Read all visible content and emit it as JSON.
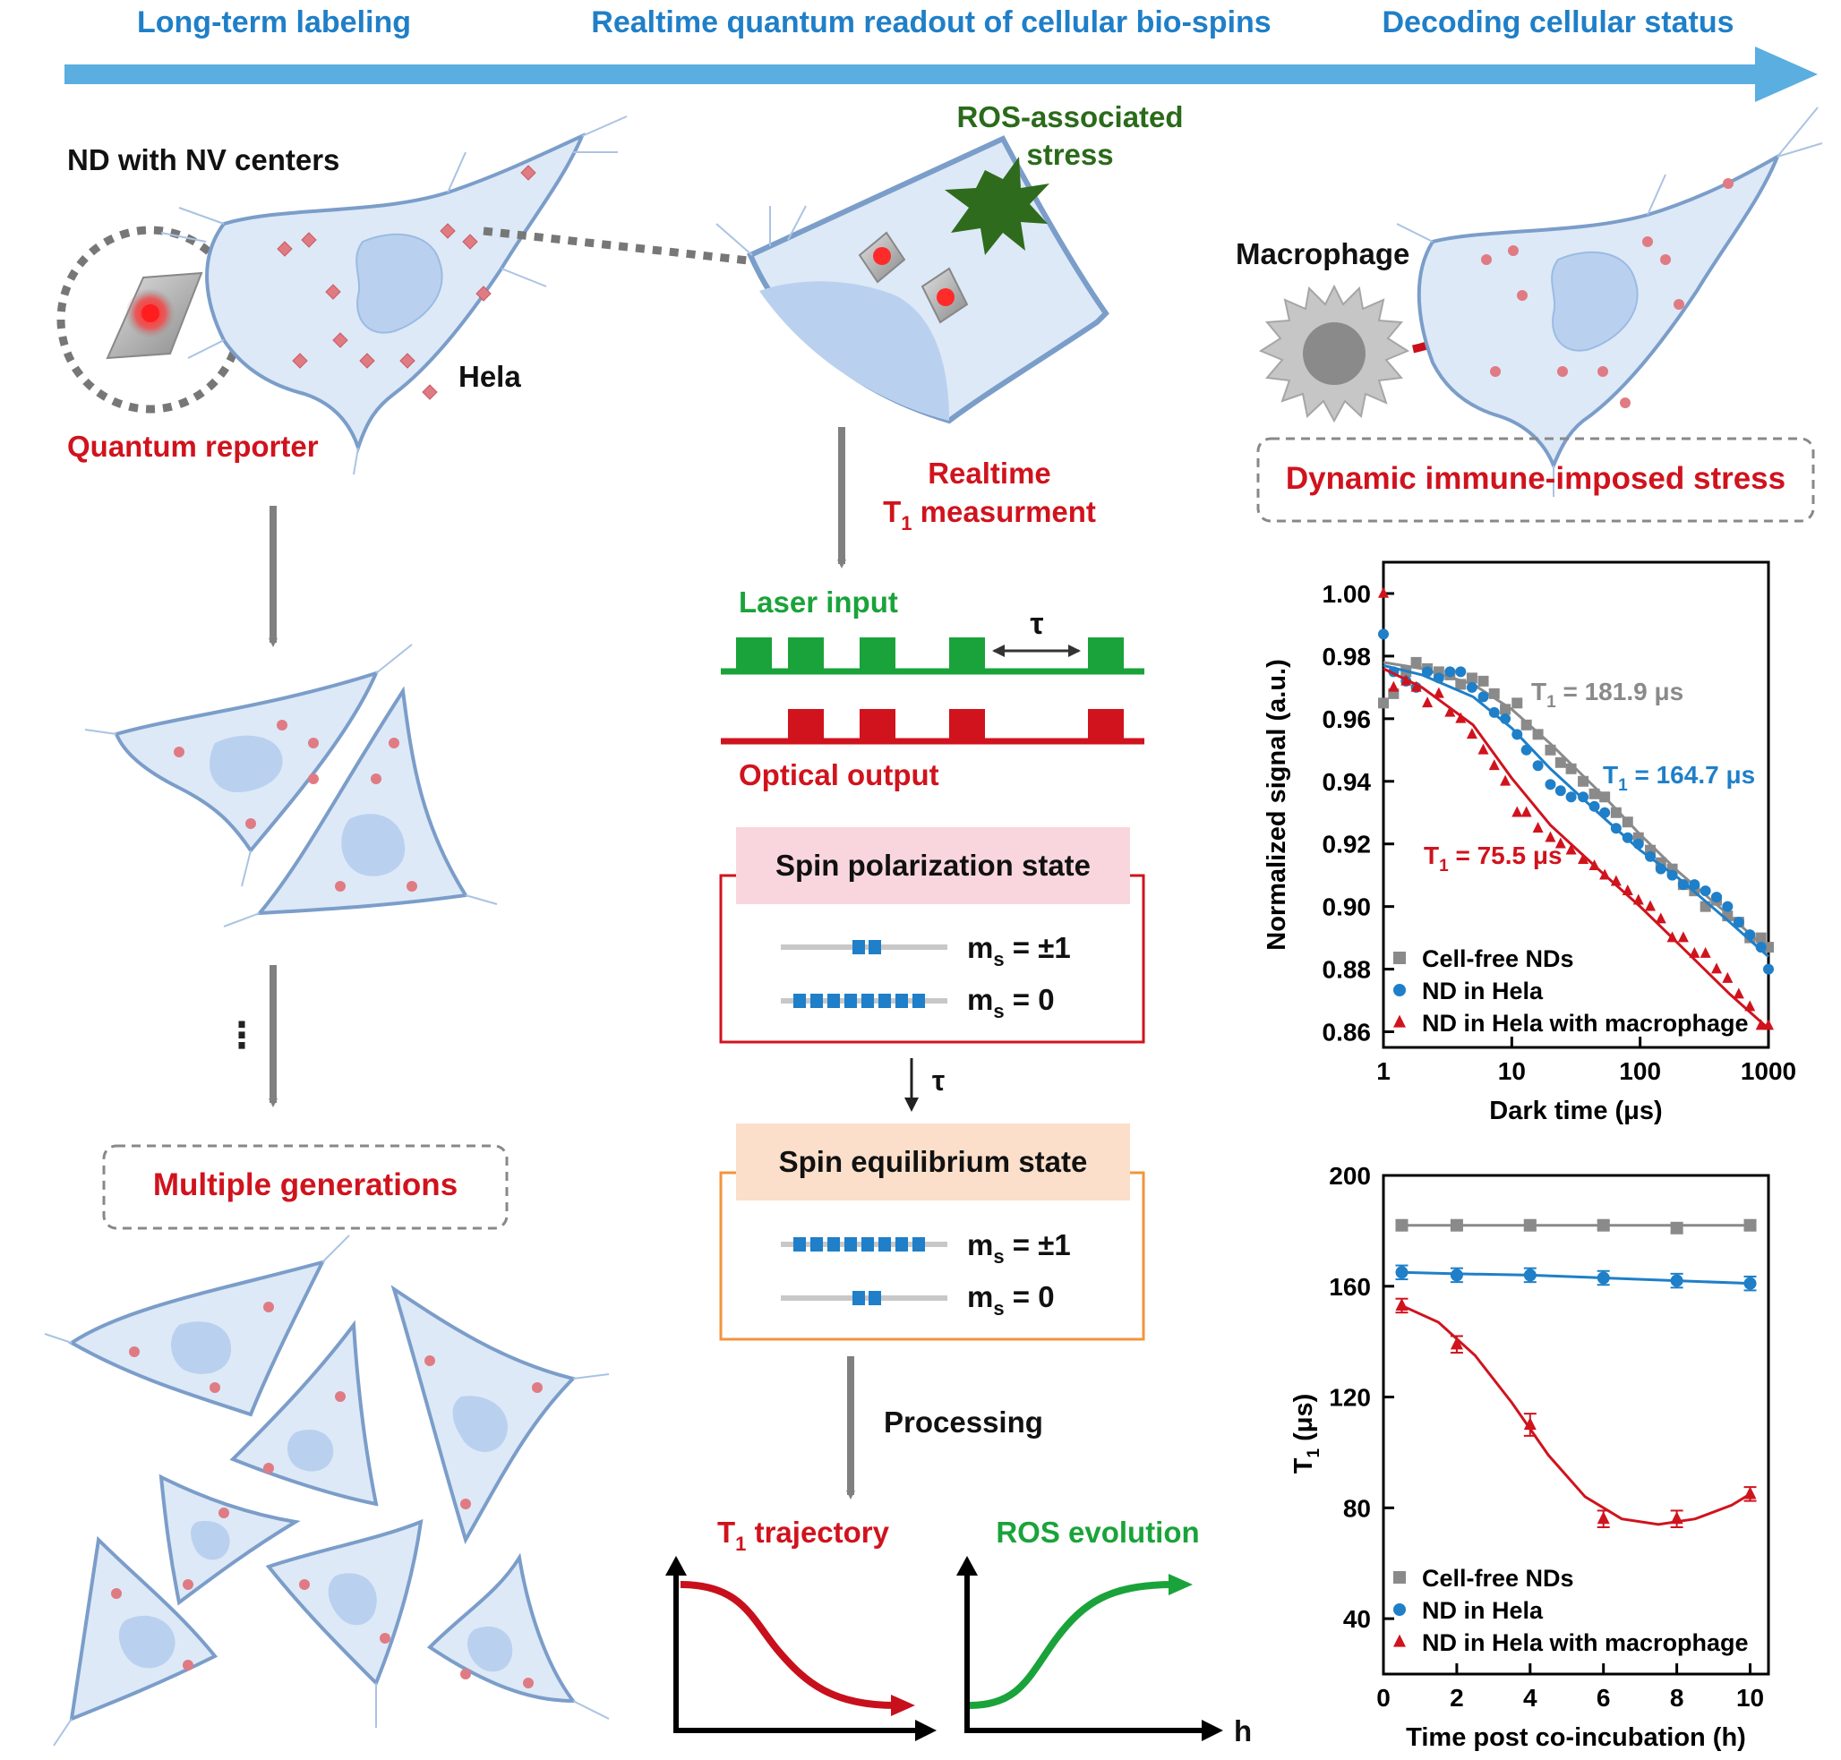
{
  "colors": {
    "blue": "#1f7fc8",
    "red": "#d0131d",
    "green": "#1aa33a",
    "dark_green": "#2a6a1a",
    "gray": "#8a8a8a",
    "cell_fill": "#dde9f7",
    "cell_stroke": "#7b9dc9",
    "nucleus": "#b9d1ef",
    "pink_box": "#f9d6dd",
    "peach_box": "#fbdfca",
    "orange_border": "#f2943e"
  },
  "header": {
    "step1": "Long-term labeling",
    "step2": "Realtime quantum readout of cellular bio-spins",
    "step3": "Decoding cellular status"
  },
  "left": {
    "nd_label": "ND with NV centers",
    "hela_label": "Hela",
    "reporter_label": "Quantum reporter",
    "ellipsis": "⋮",
    "generations_label": "Multiple generations"
  },
  "middle": {
    "ros_label_1": "ROS-associated",
    "ros_label_2": "stress",
    "measure_label_1": "Realtime",
    "measure_label_2_pre": "T",
    "measure_label_2_sub": "1",
    "measure_label_2_post": " measurment",
    "laser_label": "Laser input",
    "tau": "τ",
    "optical_label": "Optical output",
    "polar_title": "Spin polarization state",
    "equil_title": "Spin equilibrium state",
    "ms_m": "m",
    "ms_s": "s",
    "ms_pm1": " = ±1",
    "ms_0": " = 0",
    "processing_label": "Processing",
    "traj_pre": "T",
    "traj_sub": "1",
    "traj_post": " trajectory",
    "ros_evolution": "ROS evolution",
    "h_label": "h"
  },
  "right": {
    "macrophage_label": "Macrophage",
    "stress_label": "Dynamic immune-imposed stress"
  },
  "chart_data": [
    {
      "type": "scatter",
      "title": "",
      "xlabel": "Dark time (μs)",
      "ylabel": "Normalized signal (a.u.)",
      "xscale": "log",
      "xlim": [
        1,
        1000
      ],
      "ylim": [
        0.855,
        1.01
      ],
      "xticks": [
        "1",
        "10",
        "100",
        "1000"
      ],
      "yticks": [
        "0.86",
        "0.88",
        "0.90",
        "0.92",
        "0.94",
        "0.96",
        "0.98",
        "1.00"
      ],
      "legend_position": "bottom-left",
      "annotations": [
        {
          "pre": "T",
          "sub": "1",
          "post": " = 181.9 μs",
          "series": 0
        },
        {
          "pre": "T",
          "sub": "1",
          "post": " = 164.7 μs",
          "series": 1
        },
        {
          "pre": "T",
          "sub": "1",
          "post": " = 75.5 μs",
          "series": 2
        }
      ],
      "series": [
        {
          "name": "Cell-free NDs",
          "marker": "square",
          "color": "#8a8a8a",
          "x": [
            1,
            1.2,
            1.5,
            1.8,
            2.2,
            2.7,
            3.3,
            4,
            4.9,
            6,
            7.3,
            8.9,
            11,
            13,
            16,
            20,
            24,
            29,
            36,
            44,
            53,
            65,
            80,
            97,
            120,
            145,
            178,
            217,
            265,
            323,
            394,
            480,
            587,
            716,
            875,
            1000
          ],
          "y": [
            0.965,
            0.968,
            0.975,
            0.978,
            0.976,
            0.975,
            0.974,
            0.971,
            0.973,
            0.972,
            0.968,
            0.963,
            0.965,
            0.958,
            0.955,
            0.95,
            0.946,
            0.944,
            0.94,
            0.936,
            0.935,
            0.93,
            0.927,
            0.922,
            0.918,
            0.914,
            0.912,
            0.907,
            0.905,
            0.9,
            0.902,
            0.897,
            0.895,
            0.89,
            0.89,
            0.887
          ],
          "fit_x": [
            1,
            2,
            5,
            10,
            20,
            50,
            100,
            200,
            500,
            1000
          ],
          "fit_y": [
            0.978,
            0.976,
            0.971,
            0.963,
            0.952,
            0.936,
            0.923,
            0.911,
            0.897,
            0.886
          ]
        },
        {
          "name": "ND in Hela",
          "marker": "circle",
          "color": "#1f7fc8",
          "x": [
            1,
            1.2,
            1.5,
            1.8,
            2.2,
            2.7,
            3.3,
            4,
            4.9,
            6,
            7.3,
            8.9,
            11,
            13,
            16,
            20,
            24,
            29,
            36,
            44,
            53,
            65,
            80,
            97,
            120,
            145,
            178,
            217,
            265,
            323,
            394,
            480,
            587,
            716,
            875,
            1000
          ],
          "y": [
            0.987,
            0.975,
            0.972,
            0.97,
            0.975,
            0.973,
            0.975,
            0.975,
            0.97,
            0.967,
            0.962,
            0.96,
            0.955,
            0.95,
            0.945,
            0.939,
            0.937,
            0.935,
            0.935,
            0.932,
            0.93,
            0.925,
            0.922,
            0.92,
            0.916,
            0.912,
            0.91,
            0.907,
            0.907,
            0.905,
            0.903,
            0.9,
            0.895,
            0.891,
            0.887,
            0.88
          ],
          "fit_x": [
            1,
            2,
            5,
            10,
            20,
            50,
            100,
            200,
            500,
            1000
          ],
          "fit_y": [
            0.977,
            0.974,
            0.967,
            0.957,
            0.944,
            0.929,
            0.918,
            0.909,
            0.895,
            0.884
          ]
        },
        {
          "name": "ND in Hela with macrophage",
          "marker": "triangle",
          "color": "#d0131d",
          "x": [
            1,
            1.2,
            1.5,
            1.8,
            2.2,
            2.7,
            3.3,
            4,
            4.9,
            6,
            7.3,
            8.9,
            11,
            13,
            16,
            20,
            24,
            29,
            36,
            44,
            53,
            65,
            80,
            97,
            120,
            145,
            178,
            217,
            265,
            323,
            394,
            480,
            587,
            716,
            875,
            1000
          ],
          "y": [
            1.0,
            0.97,
            0.972,
            0.97,
            0.965,
            0.968,
            0.962,
            0.96,
            0.955,
            0.95,
            0.945,
            0.94,
            0.93,
            0.93,
            0.925,
            0.922,
            0.92,
            0.918,
            0.915,
            0.913,
            0.91,
            0.908,
            0.905,
            0.902,
            0.9,
            0.896,
            0.89,
            0.89,
            0.885,
            0.885,
            0.88,
            0.877,
            0.872,
            0.868,
            0.862,
            0.862
          ],
          "fit_x": [
            1,
            2,
            5,
            10,
            20,
            50,
            100,
            200,
            500,
            1000
          ],
          "fit_y": [
            0.976,
            0.97,
            0.958,
            0.941,
            0.926,
            0.911,
            0.9,
            0.888,
            0.872,
            0.861
          ]
        }
      ]
    },
    {
      "type": "line",
      "title": "",
      "xlabel": "Time post co-incubation (h)",
      "ylabel": "T1 (μs)",
      "ylabel_pre": "T",
      "ylabel_sub": "1",
      "ylabel_post": " (μs)",
      "xlim": [
        0,
        10.5
      ],
      "ylim": [
        20,
        200
      ],
      "xticks": [
        "0",
        "2",
        "4",
        "6",
        "8",
        "10"
      ],
      "yticks": [
        "40",
        "80",
        "120",
        "160",
        "200"
      ],
      "legend_position": "bottom-left",
      "series": [
        {
          "name": "Cell-free NDs",
          "marker": "square",
          "color": "#8a8a8a",
          "x": [
            0.5,
            2,
            4,
            6,
            8,
            10
          ],
          "y": [
            182,
            182,
            182,
            182,
            181,
            182
          ],
          "err": [
            1.5,
            1.5,
            1.5,
            1.5,
            1.5,
            1.5
          ],
          "fit_x": [
            0.5,
            10
          ],
          "fit_y": [
            182,
            182
          ]
        },
        {
          "name": "ND in Hela",
          "marker": "circle",
          "color": "#1f7fc8",
          "x": [
            0.5,
            2,
            4,
            6,
            8,
            10
          ],
          "y": [
            165,
            164,
            164,
            163,
            162,
            161
          ],
          "err": [
            2.5,
            2.5,
            2.5,
            2.5,
            2.5,
            2.5
          ],
          "fit_x": [
            0.5,
            2,
            4,
            6,
            8,
            10
          ],
          "fit_y": [
            165,
            164.5,
            164,
            163,
            162,
            161
          ]
        },
        {
          "name": "ND in Hela with macrophage",
          "marker": "triangle",
          "color": "#d0131d",
          "x": [
            0.5,
            2,
            4,
            6,
            8,
            10
          ],
          "y": [
            153,
            139,
            110,
            76,
            76,
            85
          ],
          "err": [
            2.5,
            3,
            4,
            3,
            3,
            2.5
          ],
          "fit_x": [
            0.5,
            1.5,
            2.5,
            3.5,
            4.5,
            5.5,
            6.5,
            7.5,
            8.5,
            9.5,
            10
          ],
          "fit_y": [
            153,
            147,
            135,
            118,
            99,
            84,
            76,
            74,
            76,
            81,
            85
          ]
        }
      ]
    }
  ]
}
